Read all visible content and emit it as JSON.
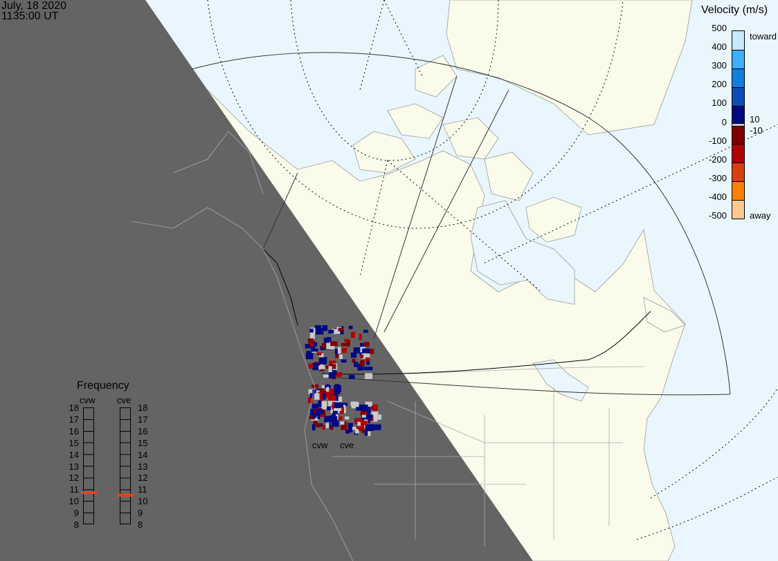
{
  "header": {
    "date": "July, 18 2020",
    "time": "1135:00 UT"
  },
  "velocity_legend": {
    "title": "Velocity (m/s)",
    "ticks": [
      "500",
      "400",
      "300",
      "200",
      "100",
      "0",
      "-100",
      "-200",
      "-300",
      "-400",
      "-500"
    ],
    "toward_label": "toward",
    "away_label": "away",
    "gs_upper": "10",
    "gs_lower": "-10",
    "colors": [
      "#c8e8ff",
      "#3cb0ff",
      "#1080e0",
      "#0a4cb8",
      "#000a80",
      "#800000",
      "#b00000",
      "#d84010",
      "#ff8000",
      "#ffc890"
    ],
    "ground_scatter_color": "#c8c8c8"
  },
  "frequency_panel": {
    "title": "Frequency",
    "ticks": [
      "18",
      "17",
      "16",
      "15",
      "14",
      "13",
      "12",
      "11",
      "10",
      "9",
      "8"
    ],
    "unit_range": [
      8,
      18
    ],
    "radars": [
      {
        "name": "cvw",
        "frequency_mhz": 10.7
      },
      {
        "name": "cve",
        "frequency_mhz": 10.5
      }
    ],
    "marker_color": "#ff4000"
  },
  "map": {
    "radar_labels": [
      "cvw",
      "cve"
    ],
    "colors": {
      "land": "#fbfbeb",
      "sea": "#eaf6fd",
      "night": "#646464"
    }
  }
}
